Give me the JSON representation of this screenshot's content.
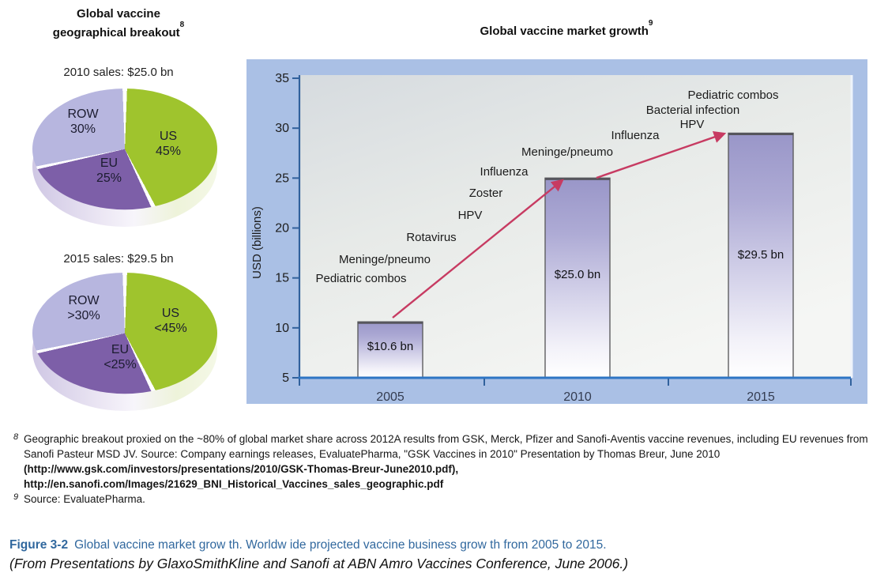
{
  "left_panel": {
    "title_line1": "Global vaccine",
    "title_line2": "geographical breakout",
    "title_sup": "8",
    "pies": [
      {
        "subtitle": "2010 sales: $25.0 bn",
        "slices": [
          {
            "label": "US",
            "value": "45%",
            "pct": 45,
            "color": "#9fc42d"
          },
          {
            "label": "EU",
            "value": "25%",
            "pct": 25,
            "color": "#7d5fa8"
          },
          {
            "label": "ROW",
            "value": "30%",
            "pct": 30,
            "color": "#b7b6df"
          }
        ]
      },
      {
        "subtitle": "2015 sales: $29.5 bn",
        "slices": [
          {
            "label": "US",
            "value": "<45%",
            "pct": 45,
            "color": "#9fc42d"
          },
          {
            "label": "EU",
            "value": "<25%",
            "pct": 25,
            "color": "#7d5fa8"
          },
          {
            "label": "ROW",
            "value": ">30%",
            "pct": 30,
            "color": "#b7b6df"
          }
        ]
      }
    ]
  },
  "chart_data": {
    "type": "bar",
    "title": "Global vaccine market growth",
    "title_sup": "9",
    "ylabel": "USD (billions)",
    "categories": [
      "2005",
      "2010",
      "2015"
    ],
    "values": [
      10.6,
      25.0,
      29.5
    ],
    "bar_labels": [
      "$10.6 bn",
      "$25.0 bn",
      "$29.5 bn"
    ],
    "ylim": [
      5,
      35
    ],
    "yticks": [
      5,
      10,
      15,
      20,
      25,
      30,
      35
    ],
    "grid": false,
    "legend": false,
    "arrow1_drivers": [
      "Pediatric combos",
      "Meninge/pneumo",
      "Rotavirus",
      "HPV",
      "Zoster",
      "Influenza"
    ],
    "arrow2_drivers": [
      "Meninge/pneumo",
      "Influenza",
      "HPV",
      "Bacterial infection",
      "Pediatric combos"
    ],
    "colors": {
      "panel_bg": "#aac0e5",
      "bar_top": "#9996c8",
      "bar_border": "#5e5e60",
      "arrow": "#c73b62",
      "y_axis": "#31619c",
      "x_axis": "#2e75c4",
      "year_label": "#343c50"
    }
  },
  "footnotes": [
    {
      "marker": "8",
      "segments": [
        {
          "text": "Geographic breakout proxied on the ~80% of global market share across 2012A results from GSK, Merck, Pfizer and Sanofi-Aventis vaccine revenues, including EU revenues from Sanofi Pasteur MSD JV. Source: Company earnings releases, EvaluatePharma, \"GSK Vaccines in 2010\" Presentation by Thomas Breur, June 2010 ",
          "bold": false
        },
        {
          "text": "(http://www.gsk.com/investors/presentations/2010/GSK-Thomas-Breur-June2010.pdf), http://en.sanofi.com/Images/21629_BNI_Historical_Vaccines_sales_geographic.pdf",
          "bold": true
        }
      ]
    },
    {
      "marker": "9",
      "segments": [
        {
          "text": "Source: EvaluatePharma.",
          "bold": false
        }
      ]
    }
  ],
  "caption": {
    "label": "Figure 3-2",
    "text": "Global vaccine market grow th. Worldw ide projected vaccine business grow th from 2005 to 2015.",
    "source_line": "(From Presentations by GlaxoSmithKline and Sanofi at ABN Amro Vaccines Conference, June 2006.)"
  }
}
